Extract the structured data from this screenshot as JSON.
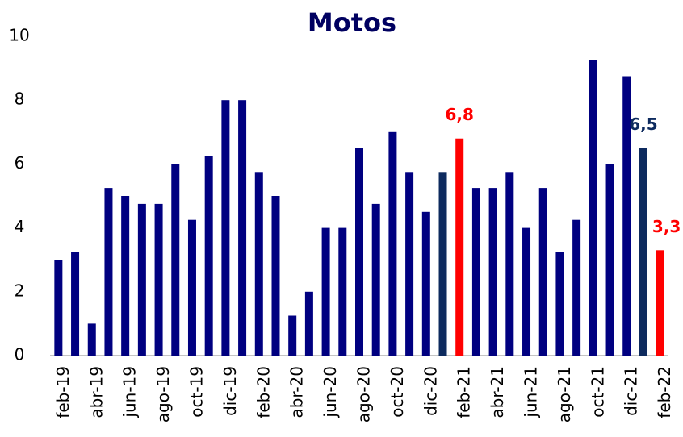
{
  "chart_data": {
    "type": "bar",
    "title": "Motos",
    "categories": [
      "feb-19",
      null,
      "abr-19",
      null,
      "jun-19",
      null,
      "ago-19",
      null,
      "oct-19",
      null,
      "dic-19",
      null,
      "feb-20",
      null,
      "abr-20",
      null,
      "jun-20",
      null,
      "ago-20",
      null,
      "oct-20",
      null,
      "dic-20",
      null,
      "feb-21",
      null,
      "abr-21",
      null,
      "jun-21",
      null,
      "ago-21",
      null,
      "oct-21",
      null,
      "dic-21",
      null,
      "feb-22"
    ],
    "values": [
      3.0,
      3.25,
      1.0,
      5.25,
      5.0,
      4.75,
      4.75,
      6.0,
      4.25,
      6.25,
      8.0,
      8.0,
      5.75,
      5.0,
      1.25,
      2.0,
      4.0,
      4.0,
      6.5,
      4.75,
      7.0,
      5.75,
      4.5,
      5.75,
      6.8,
      5.25,
      5.25,
      5.75,
      4.0,
      5.25,
      3.25,
      4.25,
      9.25,
      6.0,
      8.75,
      6.5,
      3.3
    ],
    "value_labels": [
      null,
      null,
      null,
      null,
      null,
      null,
      null,
      null,
      null,
      null,
      null,
      null,
      null,
      null,
      null,
      null,
      null,
      null,
      null,
      null,
      null,
      null,
      null,
      null,
      "6,8",
      null,
      null,
      null,
      null,
      null,
      null,
      null,
      null,
      null,
      null,
      "6,5",
      "3,3"
    ],
    "colors": [
      "#000080",
      "#000080",
      "#000080",
      "#000080",
      "#000080",
      "#000080",
      "#000080",
      "#000080",
      "#000080",
      "#000080",
      "#000080",
      "#000080",
      "#000080",
      "#000080",
      "#000080",
      "#000080",
      "#000080",
      "#000080",
      "#000080",
      "#000080",
      "#000080",
      "#000080",
      "#000080",
      "#0d2a5e",
      "#ff0000",
      "#000080",
      "#000080",
      "#000080",
      "#000080",
      "#000080",
      "#000080",
      "#000080",
      "#000080",
      "#000080",
      "#000080",
      "#0d2a5e",
      "#ff0000"
    ],
    "ylim": [
      0,
      10
    ],
    "yticks": [
      0,
      2,
      4,
      6,
      8,
      10
    ],
    "grid": false
  }
}
